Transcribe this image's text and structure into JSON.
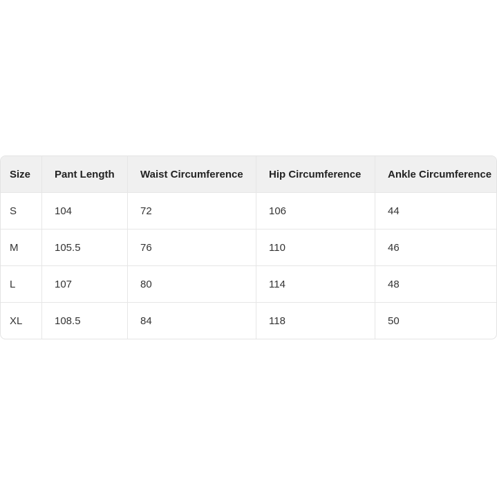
{
  "table": {
    "headers": [
      "Size",
      "Pant Length",
      "Waist Circumference",
      "Hip Circumference",
      "Ankle Circumference"
    ],
    "rows": [
      [
        "S",
        "104",
        "72",
        "106",
        "44"
      ],
      [
        "M",
        "105.5",
        "76",
        "110",
        "46"
      ],
      [
        "L",
        "107",
        "80",
        "114",
        "48"
      ],
      [
        "XL",
        "108.5",
        "84",
        "118",
        "50"
      ]
    ]
  }
}
